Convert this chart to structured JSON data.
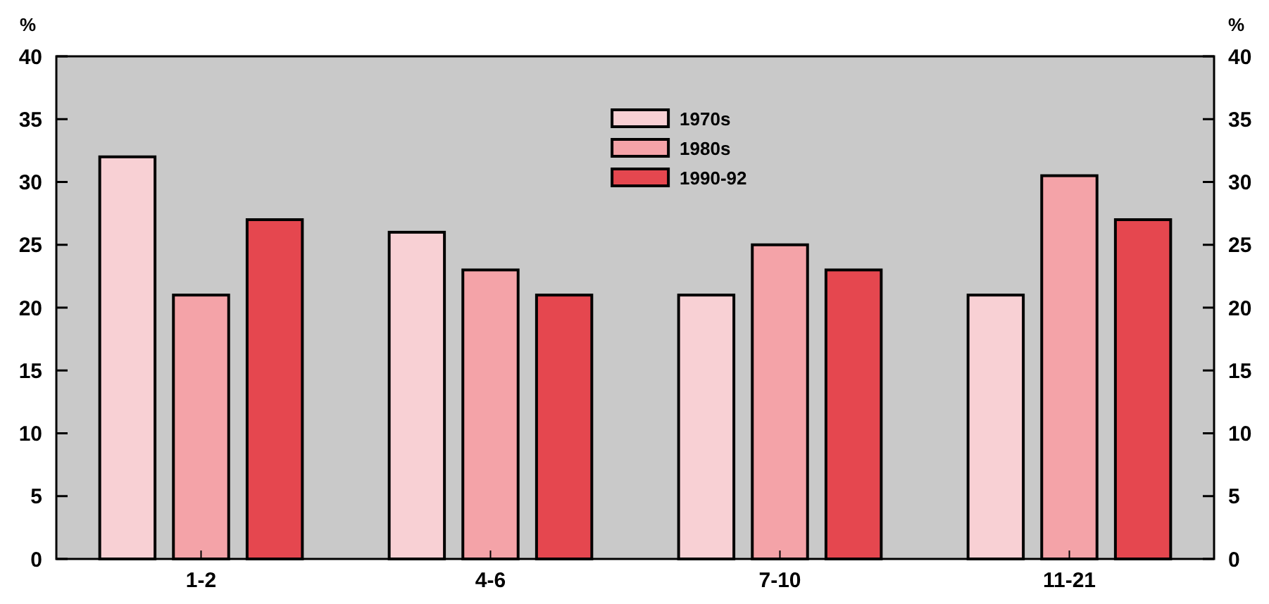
{
  "chart_data": {
    "type": "bar",
    "ylabel": "%",
    "y2label": "%",
    "categories": [
      "1-2",
      "4-6",
      "7-10",
      "11-21"
    ],
    "series": [
      {
        "name": "1970s",
        "color": "#f8d0d4",
        "values": [
          32,
          26,
          21,
          21
        ]
      },
      {
        "name": "1980s",
        "color": "#f4a3a8",
        "values": [
          21,
          23,
          25,
          30.5
        ]
      },
      {
        "name": "1990-92",
        "color": "#e5474f",
        "values": [
          27,
          21,
          23,
          27
        ]
      }
    ],
    "ylim": [
      0,
      40
    ],
    "yticks": [
      0,
      5,
      10,
      15,
      20,
      25,
      30,
      35,
      40
    ],
    "y2lim": [
      0,
      40
    ],
    "y2ticks": [
      0,
      5,
      10,
      15,
      20,
      25,
      30,
      35,
      40
    ],
    "grid": false,
    "legend": "top"
  }
}
